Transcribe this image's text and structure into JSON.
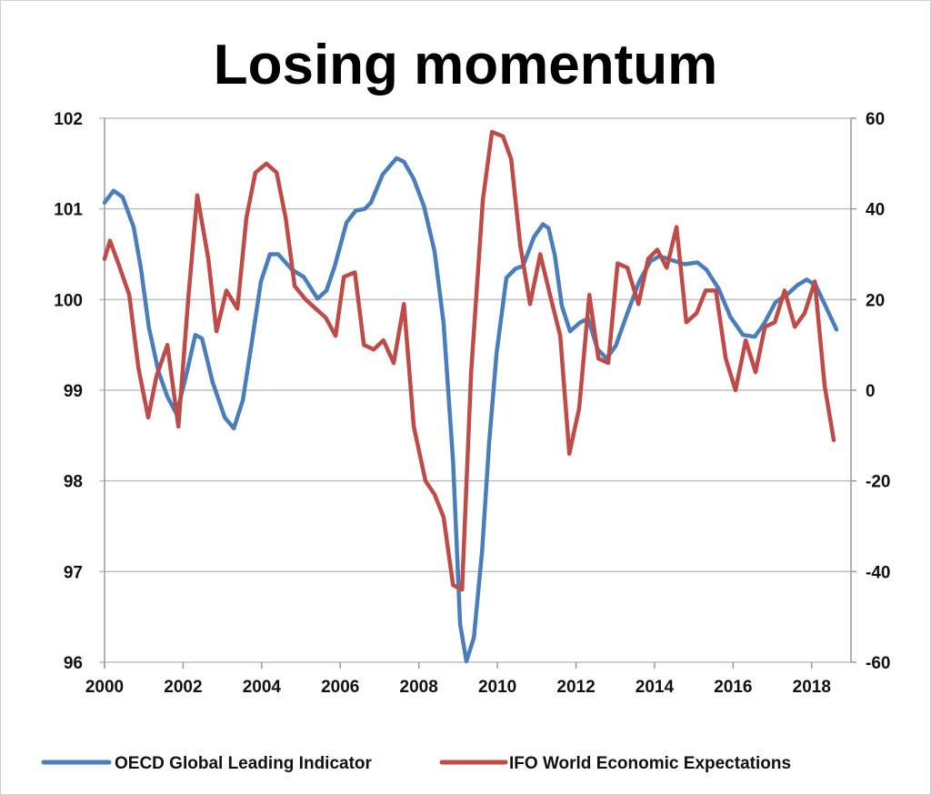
{
  "chart_data": {
    "type": "line",
    "title": "Losing momentum",
    "xlabel": "",
    "ylabel": "",
    "y2label": "",
    "xlim": [
      2000,
      2019
    ],
    "ylim": [
      96,
      102
    ],
    "y2lim": [
      -60,
      60
    ],
    "x_ticks": [
      "2000",
      "2002",
      "2004",
      "2006",
      "2008",
      "2010",
      "2012",
      "2014",
      "2016",
      "2018"
    ],
    "y_ticks": [
      "96",
      "97",
      "98",
      "99",
      "100",
      "101",
      "102"
    ],
    "y2_ticks": [
      "-60",
      "-40",
      "-20",
      "0",
      "20",
      "40",
      "60"
    ],
    "grid": true,
    "legend_position": "bottom",
    "series": [
      {
        "name": "OECD Global Leading Indicator",
        "axis": "left",
        "color": "#4a7ebb",
        "points": [
          [
            2000.0,
            101.07
          ],
          [
            2000.23,
            101.2
          ],
          [
            2000.46,
            101.13
          ],
          [
            2000.74,
            100.8
          ],
          [
            2000.93,
            100.33
          ],
          [
            2001.13,
            99.69
          ],
          [
            2001.37,
            99.21
          ],
          [
            2001.6,
            98.93
          ],
          [
            2001.83,
            98.74
          ],
          [
            2002.06,
            99.13
          ],
          [
            2002.31,
            99.61
          ],
          [
            2002.48,
            99.57
          ],
          [
            2002.75,
            99.09
          ],
          [
            2003.06,
            98.7
          ],
          [
            2003.29,
            98.58
          ],
          [
            2003.52,
            98.89
          ],
          [
            2003.75,
            99.53
          ],
          [
            2003.98,
            100.2
          ],
          [
            2004.21,
            100.5
          ],
          [
            2004.42,
            100.5
          ],
          [
            2004.77,
            100.33
          ],
          [
            2005.07,
            100.25
          ],
          [
            2005.42,
            100.01
          ],
          [
            2005.65,
            100.1
          ],
          [
            2005.86,
            100.37
          ],
          [
            2006.16,
            100.85
          ],
          [
            2006.39,
            100.98
          ],
          [
            2006.62,
            101.0
          ],
          [
            2006.78,
            101.07
          ],
          [
            2007.08,
            101.38
          ],
          [
            2007.43,
            101.56
          ],
          [
            2007.62,
            101.52
          ],
          [
            2007.87,
            101.33
          ],
          [
            2008.13,
            101.03
          ],
          [
            2008.4,
            100.53
          ],
          [
            2008.63,
            99.74
          ],
          [
            2008.87,
            98.22
          ],
          [
            2009.05,
            96.42
          ],
          [
            2009.21,
            96.01
          ],
          [
            2009.4,
            96.27
          ],
          [
            2009.61,
            97.23
          ],
          [
            2009.79,
            98.42
          ],
          [
            2009.98,
            99.41
          ],
          [
            2010.23,
            100.24
          ],
          [
            2010.46,
            100.34
          ],
          [
            2010.65,
            100.37
          ],
          [
            2010.93,
            100.69
          ],
          [
            2011.16,
            100.83
          ],
          [
            2011.3,
            100.79
          ],
          [
            2011.46,
            100.49
          ],
          [
            2011.64,
            99.93
          ],
          [
            2011.85,
            99.65
          ],
          [
            2012.11,
            99.75
          ],
          [
            2012.31,
            99.79
          ],
          [
            2012.55,
            99.45
          ],
          [
            2012.78,
            99.35
          ],
          [
            2013.01,
            99.49
          ],
          [
            2013.31,
            99.85
          ],
          [
            2013.61,
            100.2
          ],
          [
            2013.89,
            100.42
          ],
          [
            2014.12,
            100.48
          ],
          [
            2014.4,
            100.44
          ],
          [
            2014.77,
            100.39
          ],
          [
            2015.09,
            100.41
          ],
          [
            2015.32,
            100.33
          ],
          [
            2015.63,
            100.12
          ],
          [
            2015.93,
            99.81
          ],
          [
            2016.25,
            99.61
          ],
          [
            2016.55,
            99.59
          ],
          [
            2016.78,
            99.73
          ],
          [
            2017.08,
            99.97
          ],
          [
            2017.41,
            100.07
          ],
          [
            2017.64,
            100.16
          ],
          [
            2017.87,
            100.22
          ],
          [
            2018.1,
            100.16
          ],
          [
            2018.33,
            99.95
          ],
          [
            2018.63,
            99.67
          ]
        ]
      },
      {
        "name": "IFO World Economic Expectations",
        "axis": "right",
        "color": "#be4b48",
        "points": [
          [
            2000.0,
            29
          ],
          [
            2000.14,
            33
          ],
          [
            2000.35,
            28
          ],
          [
            2000.63,
            21
          ],
          [
            2000.86,
            5
          ],
          [
            2001.11,
            -6
          ],
          [
            2001.32,
            3
          ],
          [
            2001.6,
            10
          ],
          [
            2001.88,
            -8
          ],
          [
            2002.13,
            20
          ],
          [
            2002.36,
            43
          ],
          [
            2002.64,
            29
          ],
          [
            2002.85,
            13
          ],
          [
            2003.1,
            22
          ],
          [
            2003.38,
            18
          ],
          [
            2003.61,
            38
          ],
          [
            2003.84,
            48
          ],
          [
            2004.12,
            50
          ],
          [
            2004.38,
            48
          ],
          [
            2004.61,
            38
          ],
          [
            2004.84,
            23
          ],
          [
            2005.12,
            20
          ],
          [
            2005.63,
            16
          ],
          [
            2005.88,
            12
          ],
          [
            2006.09,
            25
          ],
          [
            2006.37,
            26
          ],
          [
            2006.6,
            10
          ],
          [
            2006.85,
            9
          ],
          [
            2007.1,
            11
          ],
          [
            2007.36,
            6
          ],
          [
            2007.62,
            19
          ],
          [
            2007.87,
            -8
          ],
          [
            2008.17,
            -20
          ],
          [
            2008.4,
            -23
          ],
          [
            2008.63,
            -28
          ],
          [
            2008.87,
            -43
          ],
          [
            2009.1,
            -44
          ],
          [
            2009.33,
            4
          ],
          [
            2009.63,
            42
          ],
          [
            2009.86,
            57
          ],
          [
            2010.14,
            56
          ],
          [
            2010.35,
            51
          ],
          [
            2010.58,
            32
          ],
          [
            2010.83,
            19
          ],
          [
            2011.09,
            30
          ],
          [
            2011.34,
            21
          ],
          [
            2011.6,
            12
          ],
          [
            2011.83,
            -14
          ],
          [
            2012.08,
            -4
          ],
          [
            2012.34,
            21
          ],
          [
            2012.57,
            7
          ],
          [
            2012.82,
            6
          ],
          [
            2013.06,
            28
          ],
          [
            2013.31,
            27
          ],
          [
            2013.59,
            19
          ],
          [
            2013.84,
            29
          ],
          [
            2014.07,
            31
          ],
          [
            2014.31,
            27
          ],
          [
            2014.56,
            36
          ],
          [
            2014.81,
            15
          ],
          [
            2015.07,
            17
          ],
          [
            2015.3,
            22
          ],
          [
            2015.56,
            22
          ],
          [
            2015.81,
            7
          ],
          [
            2016.06,
            0
          ],
          [
            2016.32,
            11
          ],
          [
            2016.57,
            4
          ],
          [
            2016.81,
            14
          ],
          [
            2017.06,
            15
          ],
          [
            2017.31,
            22
          ],
          [
            2017.57,
            14
          ],
          [
            2017.82,
            17
          ],
          [
            2018.08,
            24
          ],
          [
            2018.33,
            1
          ],
          [
            2018.56,
            -11
          ]
        ]
      }
    ]
  }
}
